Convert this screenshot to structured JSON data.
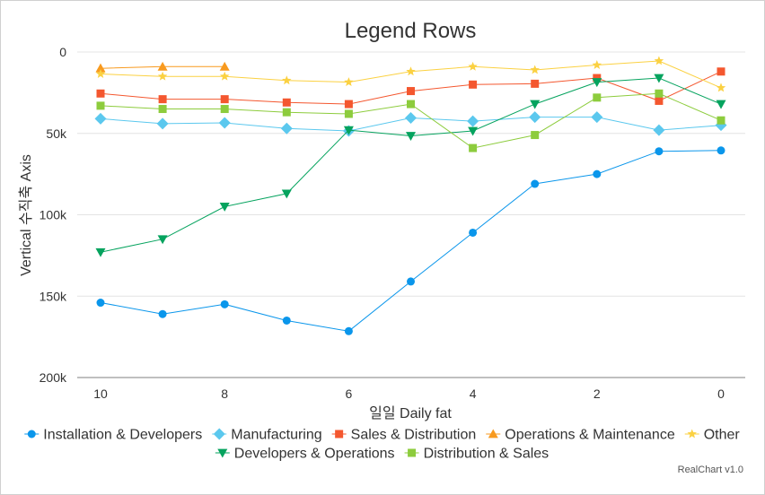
{
  "chart_data": {
    "type": "line",
    "title": "Legend Rows",
    "xlabel": "일일 Daily fat",
    "ylabel": "Vertical 수직축 Axis",
    "x_reversed": true,
    "y_reversed": true,
    "xlim": [
      0,
      10
    ],
    "ylim": [
      0,
      200000
    ],
    "xticks": [
      {
        "value": 10,
        "label": "10"
      },
      {
        "value": 8,
        "label": "8"
      },
      {
        "value": 6,
        "label": "6"
      },
      {
        "value": 4,
        "label": "4"
      },
      {
        "value": 2,
        "label": "2"
      },
      {
        "value": 0,
        "label": "0"
      }
    ],
    "yticks": [
      {
        "value": 0,
        "label": "0"
      },
      {
        "value": 50000,
        "label": "50k"
      },
      {
        "value": 100000,
        "label": "100k"
      },
      {
        "value": 150000,
        "label": "150k"
      },
      {
        "value": 200000,
        "label": "200k"
      }
    ],
    "grid": true,
    "legend_position": "bottom",
    "x": [
      10,
      9,
      8,
      7,
      6,
      5,
      4,
      3,
      2,
      1,
      0
    ],
    "series": [
      {
        "name": "Installation & Developers",
        "color": "#0a96eb",
        "marker": "circle",
        "values": [
          154000,
          161000,
          155000,
          165000,
          171500,
          141000,
          111000,
          81000,
          75000,
          61000,
          60500
        ]
      },
      {
        "name": "Manufacturing",
        "color": "#5bc8ee",
        "marker": "diamond",
        "values": [
          41000,
          44000,
          43500,
          47000,
          48500,
          40500,
          42500,
          40000,
          40000,
          48000,
          45000
        ]
      },
      {
        "name": "Sales & Distribution",
        "color": "#f4572f",
        "marker": "square",
        "values": [
          25500,
          29000,
          29000,
          31000,
          32000,
          24000,
          20000,
          19500,
          16000,
          30000,
          12000
        ]
      },
      {
        "name": "Operations & Maintenance",
        "color": "#f89a1f",
        "marker": "triangle",
        "values": [
          10000,
          9000,
          9000,
          null,
          null,
          null,
          null,
          null,
          null,
          null,
          null
        ]
      },
      {
        "name": "Other",
        "color": "#fbd142",
        "marker": "star",
        "values": [
          13500,
          15000,
          15000,
          17500,
          18500,
          12000,
          9000,
          11000,
          8000,
          5500,
          22000
        ]
      },
      {
        "name": "Developers & Operations",
        "color": "#05a35e",
        "marker": "triangle-down",
        "values": [
          123000,
          115000,
          95000,
          87000,
          48000,
          51500,
          48500,
          32000,
          18500,
          16000,
          32000
        ]
      },
      {
        "name": "Distribution & Sales",
        "color": "#8dcc3d",
        "marker": "square",
        "values": [
          33000,
          35000,
          35000,
          37000,
          38000,
          32000,
          59000,
          51000,
          28000,
          25500,
          42000
        ]
      }
    ]
  },
  "credit": "RealChart v1.0"
}
